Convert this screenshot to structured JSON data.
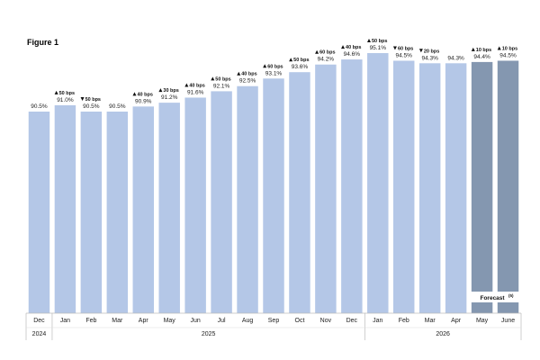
{
  "chart_data": {
    "type": "bar",
    "title": "Figure 1",
    "categories": [
      "Dec",
      "Jan",
      "Feb",
      "Mar",
      "Apr",
      "May",
      "Jun",
      "Jul",
      "Aug",
      "Sep",
      "Oct",
      "Nov",
      "Dec",
      "Jan",
      "Feb",
      "Mar",
      "Apr",
      "May",
      "June"
    ],
    "values": [
      90.5,
      91.0,
      90.5,
      90.5,
      90.9,
      91.2,
      91.6,
      92.1,
      92.5,
      93.1,
      93.6,
      94.2,
      94.6,
      95.1,
      94.5,
      94.3,
      94.3,
      94.4,
      94.5
    ],
    "value_labels": [
      "90.5%",
      "91.0%",
      "90.5%",
      "90.5%",
      "90.9%",
      "91.2%",
      "91.6%",
      "92.1%",
      "92.5%",
      "93.1%",
      "93.6%",
      "94.2%",
      "94.6%",
      "95.1%",
      "94.5%",
      "94.3%",
      "94.3%",
      "94.4%",
      "94.5%"
    ],
    "changes": [
      null,
      {
        "dir": "up",
        "text": "50 bps"
      },
      {
        "dir": "down",
        "text": "50 bps"
      },
      null,
      {
        "dir": "up",
        "text": "40 bps"
      },
      {
        "dir": "up",
        "text": "30 bps"
      },
      {
        "dir": "up",
        "text": "40 bps"
      },
      {
        "dir": "up",
        "text": "50 bps"
      },
      {
        "dir": "up",
        "text": "40 bps"
      },
      {
        "dir": "up",
        "text": "60 bps"
      },
      {
        "dir": "up",
        "text": "50 bps"
      },
      {
        "dir": "up",
        "text": "60 bps"
      },
      {
        "dir": "up",
        "text": "40 bps"
      },
      {
        "dir": "up",
        "text": "50 bps"
      },
      {
        "dir": "down",
        "text": "60 bps"
      },
      {
        "dir": "down",
        "text": "20 bps"
      },
      null,
      {
        "dir": "up",
        "text": "10 bps"
      },
      {
        "dir": "up",
        "text": "10 bps"
      }
    ],
    "forecast_indices": [
      17,
      18
    ],
    "forecast_label": "Forecast",
    "forecast_note": "(5)",
    "years": [
      {
        "label": "2024",
        "start": 0,
        "end": 0
      },
      {
        "label": "2025",
        "start": 1,
        "end": 12
      },
      {
        "label": "2026",
        "start": 13,
        "end": 18
      }
    ],
    "colors": {
      "actual": "#b4c7e7",
      "forecast": "#8497b0"
    }
  }
}
